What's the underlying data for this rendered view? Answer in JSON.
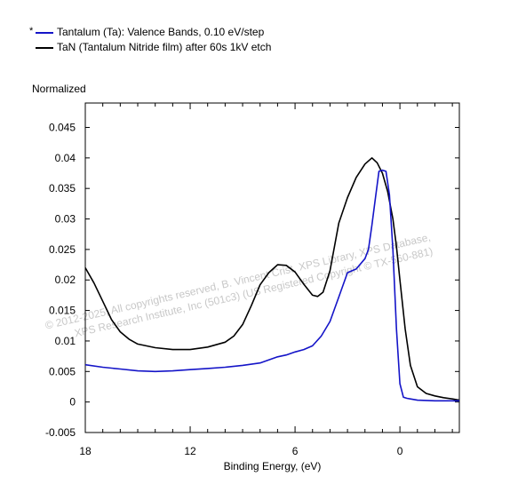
{
  "legend": {
    "marker": "*",
    "entries": [
      {
        "label": "Tantalum (Ta): Valence Bands, 0.10 eV/step",
        "color": "#1414c8"
      },
      {
        "label": "TaN (Tantalum Nitride film) after 60s 1kV etch",
        "color": "#000000"
      }
    ]
  },
  "watermark": {
    "line1": "© 2012-2025,  All copyrights reserved,   B. Vincent Crist,  XPS Library, XPS Database,",
    "line2": "XPS Research Institute, Inc (501c3)   (US Registered Copyright © TX-560-881)"
  },
  "chart_data": {
    "type": "line",
    "ylabel": "Normalized",
    "xlabel": "Binding Energy, (eV)",
    "x_reversed": true,
    "xlim": [
      18.0,
      -3.4
    ],
    "ylim": [
      -0.005,
      0.049
    ],
    "x_ticks": [
      18,
      12,
      6,
      0
    ],
    "y_ticks": [
      -0.005,
      0,
      0.005,
      0.01,
      0.015,
      0.02,
      0.025,
      0.03,
      0.035,
      0.04,
      0.045
    ],
    "y_tick_labels": [
      "-0.005",
      "0",
      "0.005",
      "0.01",
      "0.015",
      "0.02",
      "0.025",
      "0.03",
      "0.035",
      "0.04",
      "0.045"
    ],
    "series": [
      {
        "name": "Tantalum (Ta): Valence Bands, 0.10 eV/step",
        "color": "#1414c8",
        "x": [
          18.0,
          17.0,
          16.0,
          15.0,
          14.0,
          13.0,
          12.0,
          11.0,
          10.0,
          9.0,
          8.0,
          7.0,
          6.5,
          6.0,
          5.5,
          5.0,
          4.5,
          4.0,
          3.5,
          3.0,
          2.5,
          2.0,
          1.8,
          1.6,
          1.4,
          1.2,
          1.0,
          0.8,
          0.6,
          0.4,
          0.2,
          0.0,
          -0.2,
          -0.4,
          -0.6,
          -1.0,
          -2.0,
          -3.0,
          -3.4
        ],
        "y": [
          0.0061,
          0.0057,
          0.0054,
          0.0051,
          0.005,
          0.0051,
          0.0053,
          0.0055,
          0.0057,
          0.006,
          0.0064,
          0.0074,
          0.0077,
          0.0082,
          0.0086,
          0.0092,
          0.0108,
          0.0132,
          0.0172,
          0.0212,
          0.0218,
          0.0235,
          0.025,
          0.029,
          0.0335,
          0.0378,
          0.038,
          0.0378,
          0.034,
          0.025,
          0.012,
          0.003,
          0.0008,
          0.0006,
          0.0005,
          0.0003,
          0.0002,
          0.0002,
          0.0002
        ]
      },
      {
        "name": "TaN (Tantalum Nitride film) after 60s 1kV etch",
        "color": "#000000",
        "x": [
          18.0,
          17.5,
          17.0,
          16.5,
          16.0,
          15.5,
          15.0,
          14.0,
          13.0,
          12.0,
          11.0,
          10.0,
          9.5,
          9.0,
          8.5,
          8.0,
          7.5,
          7.0,
          6.5,
          6.0,
          5.5,
          5.0,
          4.7,
          4.4,
          4.0,
          3.5,
          3.0,
          2.5,
          2.0,
          1.6,
          1.3,
          1.0,
          0.7,
          0.4,
          0.2,
          0.0,
          -0.3,
          -0.6,
          -1.0,
          -1.5,
          -2.0,
          -2.5,
          -3.0,
          -3.4
        ],
        "y": [
          0.022,
          0.0195,
          0.0165,
          0.0135,
          0.0115,
          0.0103,
          0.0095,
          0.0089,
          0.0086,
          0.0086,
          0.009,
          0.0098,
          0.0108,
          0.0127,
          0.0158,
          0.0192,
          0.0212,
          0.0225,
          0.0224,
          0.0213,
          0.0193,
          0.0175,
          0.0173,
          0.018,
          0.0215,
          0.0293,
          0.0335,
          0.0368,
          0.039,
          0.04,
          0.0392,
          0.0375,
          0.0345,
          0.03,
          0.0255,
          0.02,
          0.012,
          0.006,
          0.0025,
          0.0014,
          0.001,
          0.0007,
          0.0005,
          0.0003
        ]
      }
    ]
  }
}
